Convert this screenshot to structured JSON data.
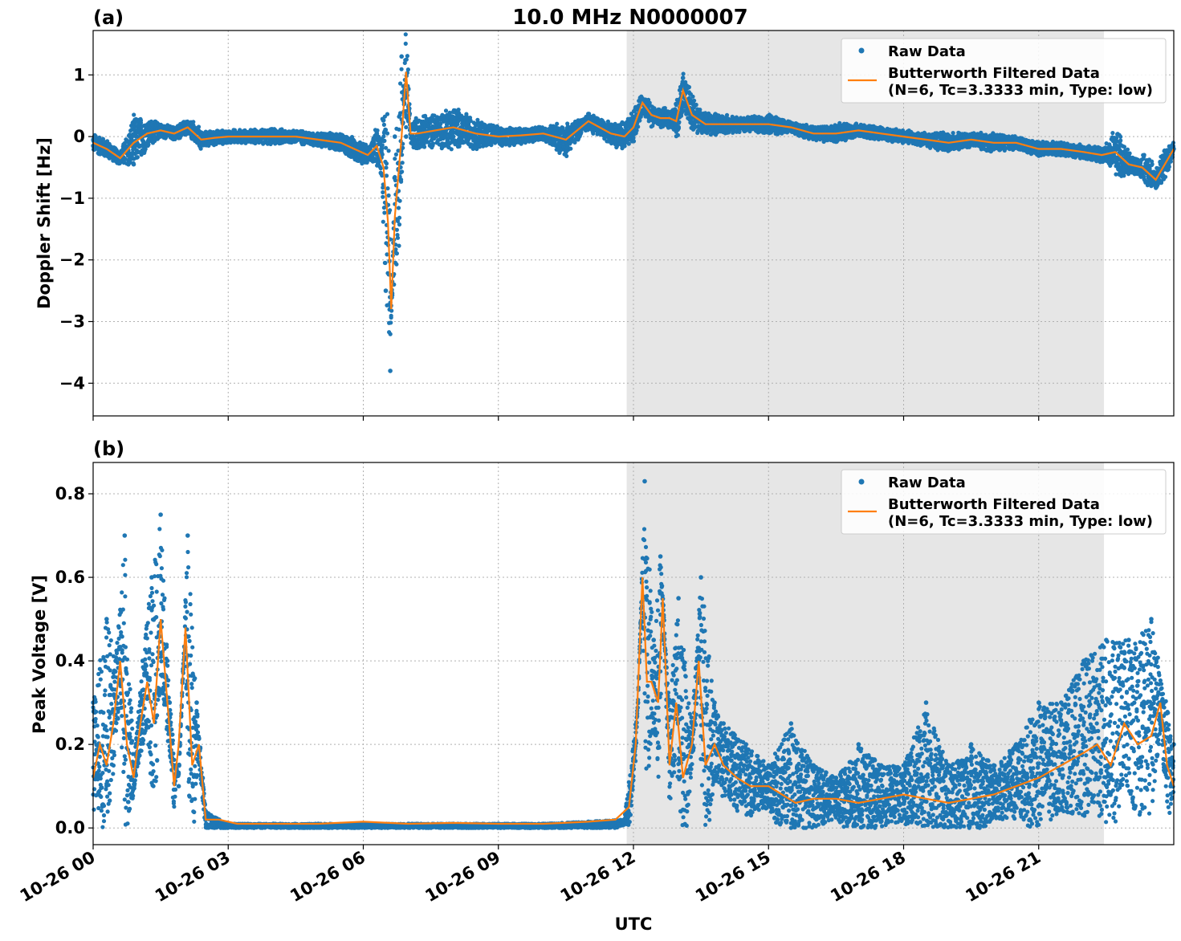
{
  "figure": {
    "title": "10.0 MHz N0000007",
    "xlabel": "UTC"
  },
  "colors": {
    "raw": "#1f77b4",
    "filtered": "#ff7f0e",
    "shade": "#e6e6e6",
    "grid": "#b0b0b0"
  },
  "chart_data": [
    {
      "type": "scatter",
      "panel_label": "(a)",
      "ylabel": "Doppler Shift [Hz]",
      "xlim": [
        0,
        24.0
      ],
      "ylim": [
        -4.53,
        1.72
      ],
      "yticks": [
        1,
        0,
        -1,
        -2,
        -3,
        -4
      ],
      "ytick_labels": [
        "1",
        "0",
        "−1",
        "−2",
        "−3",
        "−4"
      ],
      "xticks": [
        0,
        3,
        6,
        9,
        12,
        15,
        18,
        21
      ],
      "shaded_interval_hours": [
        11.85,
        22.45
      ],
      "legend": {
        "location": "top-right",
        "entries": [
          {
            "label": "Raw Data",
            "marker": "dot"
          },
          {
            "label": "Butterworth Filtered Data",
            "label2": "(N=6, Tc=3.3333 min, Type: low)",
            "marker": "line"
          }
        ]
      },
      "series": [
        {
          "name": "Raw Data",
          "style": "dots",
          "x": [
            0,
            0.5,
            0.9,
            1.2,
            1.5,
            1.8,
            2.2,
            2.5,
            3.0,
            3.5,
            4.0,
            4.5,
            5.0,
            5.5,
            5.9,
            6.2,
            6.4,
            6.5,
            6.6,
            6.7,
            6.85,
            6.95,
            7.1,
            7.5,
            8.0,
            8.5,
            9.0,
            9.5,
            10.0,
            10.5,
            11.0,
            11.5,
            11.9,
            12.2,
            12.5,
            12.9,
            13.1,
            13.5,
            14.0,
            14.5,
            15.0,
            15.5,
            16.0,
            16.5,
            17.0,
            17.5,
            18.0,
            18.5,
            19.0,
            19.5,
            20.0,
            20.5,
            21.0,
            21.5,
            22.0,
            22.5,
            22.8,
            23.2,
            23.5,
            23.8,
            24.0
          ],
          "y": [
            -0.15,
            -0.3,
            -0.45,
            -0.1,
            0.1,
            0.05,
            0.15,
            -0.05,
            0.0,
            0.0,
            0.02,
            0.0,
            -0.05,
            -0.05,
            -0.15,
            -0.3,
            -0.6,
            -2.5,
            -3.8,
            0.0,
            1.3,
            0.0,
            0.2,
            0.25,
            0.4,
            0.2,
            0.05,
            0.05,
            0.05,
            -0.25,
            0.3,
            0.1,
            0.2,
            0.6,
            0.35,
            0.35,
            0.95,
            0.3,
            0.25,
            0.2,
            0.25,
            0.15,
            0.05,
            0.1,
            0.1,
            0.05,
            0.0,
            -0.05,
            -0.05,
            -0.05,
            -0.15,
            -0.1,
            -0.2,
            -0.2,
            -0.25,
            -0.35,
            -0.6,
            -0.5,
            -0.8,
            -0.3,
            -0.2
          ]
        },
        {
          "name": "Butterworth Filtered Data",
          "style": "line",
          "x": [
            0,
            0.3,
            0.6,
            0.9,
            1.2,
            1.5,
            1.8,
            2.1,
            2.4,
            2.7,
            3.0,
            3.5,
            4.0,
            4.5,
            5.0,
            5.5,
            5.8,
            6.1,
            6.3,
            6.45,
            6.55,
            6.62,
            6.7,
            6.85,
            6.95,
            7.05,
            7.2,
            7.6,
            8.0,
            8.5,
            9.0,
            9.5,
            10.0,
            10.5,
            11.0,
            11.5,
            11.8,
            12.0,
            12.2,
            12.4,
            12.6,
            12.8,
            12.95,
            13.1,
            13.3,
            13.6,
            14.0,
            14.5,
            15.0,
            15.5,
            16.0,
            16.5,
            17.0,
            17.5,
            18.0,
            18.5,
            19.0,
            19.5,
            20.0,
            20.5,
            21.0,
            21.5,
            22.0,
            22.4,
            22.7,
            23.0,
            23.3,
            23.6,
            24.0
          ],
          "y": [
            -0.1,
            -0.2,
            -0.35,
            -0.1,
            0.05,
            0.1,
            0.05,
            0.15,
            -0.05,
            -0.02,
            0.0,
            0.0,
            0.0,
            0.0,
            -0.05,
            -0.1,
            -0.2,
            -0.3,
            -0.15,
            -0.5,
            -1.4,
            -2.8,
            -1.3,
            0.0,
            1.05,
            0.05,
            0.05,
            0.1,
            0.15,
            0.05,
            0.0,
            0.02,
            0.05,
            -0.05,
            0.25,
            0.05,
            0.0,
            0.15,
            0.55,
            0.35,
            0.3,
            0.3,
            0.25,
            0.75,
            0.35,
            0.2,
            0.2,
            0.2,
            0.2,
            0.15,
            0.05,
            0.05,
            0.1,
            0.05,
            0.0,
            -0.05,
            -0.1,
            -0.05,
            -0.1,
            -0.1,
            -0.2,
            -0.2,
            -0.25,
            -0.3,
            -0.25,
            -0.45,
            -0.5,
            -0.7,
            -0.2
          ]
        }
      ]
    },
    {
      "type": "scatter",
      "panel_label": "(b)",
      "ylabel": "Peak Voltage [V]",
      "xlim": [
        0,
        24.0
      ],
      "ylim": [
        -0.04,
        0.875
      ],
      "yticks": [
        0.8,
        0.6,
        0.4,
        0.2,
        0.0
      ],
      "ytick_labels": [
        "0.8",
        "0.6",
        "0.4",
        "0.2",
        "0.0"
      ],
      "xticks": [
        0,
        3,
        6,
        9,
        12,
        15,
        18,
        21
      ],
      "xtick_labels": [
        "10-26 00",
        "10-26 03",
        "10-26 06",
        "10-26 09",
        "10-26 12",
        "10-26 15",
        "10-26 18",
        "10-26 21"
      ],
      "shaded_interval_hours": [
        11.85,
        22.45
      ],
      "legend": {
        "location": "top-right",
        "entries": [
          {
            "label": "Raw Data",
            "marker": "dot"
          },
          {
            "label": "Butterworth Filtered Data",
            "label2": "(N=6, Tc=3.3333 min, Type: low)",
            "marker": "line"
          }
        ]
      },
      "series": [
        {
          "name": "Raw Data",
          "style": "dots",
          "x": [
            0,
            0.3,
            0.5,
            0.7,
            0.9,
            1.1,
            1.3,
            1.5,
            1.7,
            1.9,
            2.1,
            2.3,
            2.5,
            2.8,
            3.0,
            4.0,
            5.0,
            6.0,
            7.0,
            8.0,
            9.0,
            10.0,
            11.0,
            11.8,
            12.1,
            12.25,
            12.45,
            12.6,
            12.8,
            13.0,
            13.3,
            13.5,
            13.8,
            14.0,
            14.5,
            15.0,
            15.5,
            16.0,
            16.5,
            17.0,
            17.5,
            18.0,
            18.5,
            19.0,
            19.5,
            20.0,
            20.5,
            21.0,
            21.5,
            22.0,
            22.5,
            23.0,
            23.5,
            24.0
          ],
          "y": [
            0.3,
            0.5,
            0.4,
            0.7,
            0.15,
            0.4,
            0.6,
            0.75,
            0.3,
            0.1,
            0.7,
            0.3,
            0.04,
            0.02,
            0.01,
            0.01,
            0.01,
            0.01,
            0.01,
            0.01,
            0.01,
            0.01,
            0.015,
            0.02,
            0.3,
            0.83,
            0.45,
            0.65,
            0.3,
            0.55,
            0.25,
            0.6,
            0.3,
            0.25,
            0.2,
            0.15,
            0.25,
            0.15,
            0.12,
            0.2,
            0.15,
            0.15,
            0.3,
            0.15,
            0.2,
            0.15,
            0.2,
            0.3,
            0.3,
            0.4,
            0.45,
            0.45,
            0.5,
            0.2
          ]
        },
        {
          "name": "Butterworth Filtered Data",
          "style": "line",
          "x": [
            0,
            0.15,
            0.3,
            0.45,
            0.6,
            0.75,
            0.9,
            1.05,
            1.2,
            1.35,
            1.5,
            1.65,
            1.8,
            1.9,
            2.05,
            2.2,
            2.35,
            2.5,
            2.8,
            3.2,
            4.0,
            5.0,
            6.0,
            7.0,
            8.0,
            9.0,
            10.0,
            11.0,
            11.6,
            11.9,
            12.05,
            12.2,
            12.3,
            12.4,
            12.55,
            12.65,
            12.8,
            12.95,
            13.1,
            13.3,
            13.45,
            13.6,
            13.8,
            14.0,
            14.3,
            14.6,
            15.0,
            15.3,
            15.6,
            16.0,
            16.5,
            17.0,
            17.5,
            18.0,
            18.5,
            19.0,
            19.5,
            20.0,
            20.5,
            21.0,
            21.5,
            22.0,
            22.3,
            22.6,
            22.9,
            23.2,
            23.5,
            23.7,
            23.85,
            24.0
          ],
          "y": [
            0.12,
            0.2,
            0.15,
            0.25,
            0.4,
            0.2,
            0.12,
            0.25,
            0.35,
            0.25,
            0.5,
            0.3,
            0.1,
            0.2,
            0.48,
            0.15,
            0.2,
            0.02,
            0.02,
            0.01,
            0.01,
            0.01,
            0.015,
            0.01,
            0.012,
            0.01,
            0.01,
            0.015,
            0.02,
            0.05,
            0.2,
            0.6,
            0.35,
            0.35,
            0.3,
            0.55,
            0.15,
            0.3,
            0.12,
            0.2,
            0.4,
            0.15,
            0.2,
            0.15,
            0.12,
            0.1,
            0.1,
            0.08,
            0.06,
            0.07,
            0.07,
            0.06,
            0.07,
            0.08,
            0.07,
            0.06,
            0.07,
            0.08,
            0.1,
            0.12,
            0.15,
            0.18,
            0.2,
            0.15,
            0.25,
            0.2,
            0.22,
            0.3,
            0.15,
            0.1
          ]
        }
      ]
    }
  ]
}
